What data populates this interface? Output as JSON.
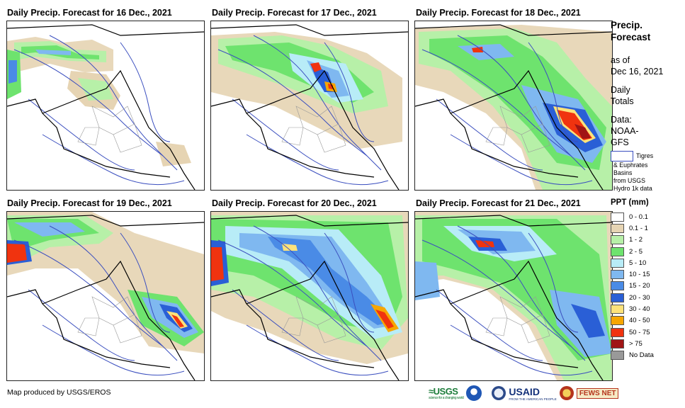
{
  "panels": [
    {
      "title": "Daily Precip. Forecast for 16 Dec., 2021"
    },
    {
      "title": "Daily Precip. Forecast for 17 Dec., 2021"
    },
    {
      "title": "Daily Precip. Forecast for 18 Dec., 2021"
    },
    {
      "title": "Daily Precip. Forecast for 19 Dec., 2021"
    },
    {
      "title": "Daily Precip. Forecast for 20 Dec., 2021"
    },
    {
      "title": "Daily Precip. Forecast for 21 Dec., 2021"
    }
  ],
  "legend": {
    "title_line1": "Precip.",
    "title_line2": "Forecast",
    "asof_line1": "as of",
    "asof_line2": "Dec 16, 2021",
    "daily_line1": "Daily",
    "daily_line2": "Totals",
    "data_line1": "Data:",
    "data_line2": "NOAA-",
    "data_line3": "GFS",
    "basin_line1": "Tigres",
    "basin_line2": "& Euphrates",
    "basin_line3": "Basins",
    "basin_line4": "from USGS",
    "basin_line5": "Hydro 1k data",
    "ppt_title": "PPT (mm)",
    "classes": [
      {
        "label": "0 - 0.1",
        "color": "#ffffff"
      },
      {
        "label": "0.1 - 1",
        "color": "#e6d4b3"
      },
      {
        "label": "1 - 2",
        "color": "#b7f0a8"
      },
      {
        "label": "2 - 5",
        "color": "#6ee36e"
      },
      {
        "label": "5 - 10",
        "color": "#b8ecf7"
      },
      {
        "label": "10 - 15",
        "color": "#7fb8f0"
      },
      {
        "label": "15 - 20",
        "color": "#4a8be6"
      },
      {
        "label": "20 - 30",
        "color": "#2a5fd6"
      },
      {
        "label": "30 - 40",
        "color": "#fde27a"
      },
      {
        "label": "40 - 50",
        "color": "#f7a600"
      },
      {
        "label": "50 - 75",
        "color": "#f0330f"
      },
      {
        "label": "> 75",
        "color": "#a01515"
      },
      {
        "label": "No Data",
        "color": "#999999"
      }
    ]
  },
  "footer": {
    "credit": "Map produced by USGS/EROS"
  },
  "logos": {
    "usgs": "≈USGS",
    "usgs_tagline": "science for a changing world",
    "usaid": "USAID",
    "usaid_tagline": "FROM THE AMERICAN PEOPLE",
    "fews": "FEWS NET"
  }
}
